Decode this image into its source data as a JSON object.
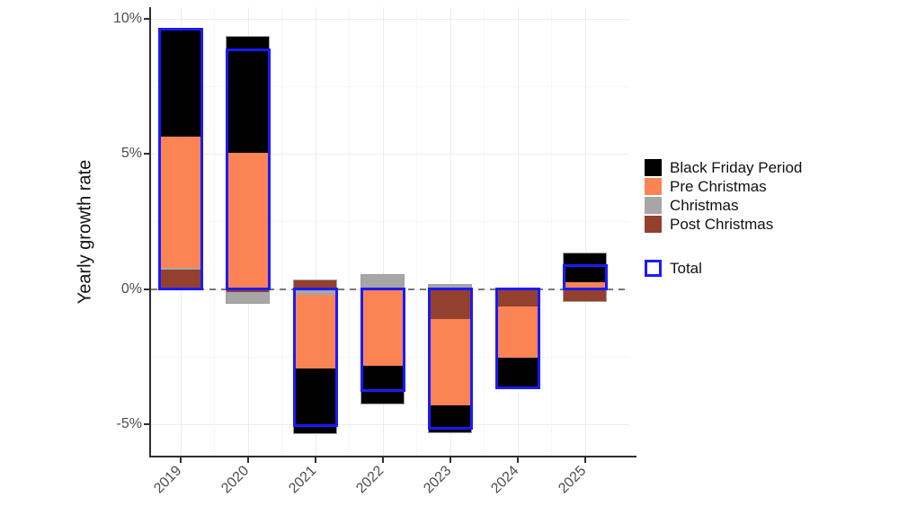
{
  "chart_data": {
    "type": "bar",
    "subtype": "diverging-stacked-bar-with-total-outline",
    "title": "",
    "xlabel": "",
    "ylabel": "Yearly growth rate",
    "categories": [
      "2019",
      "2020",
      "2021",
      "2022",
      "2023",
      "2024",
      "2025"
    ],
    "series": [
      {
        "name": "Black Friday Period",
        "color": "#000000",
        "values": [
          4.0,
          4.3,
          -2.4,
          -1.4,
          -1.0,
          -1.1,
          1.05
        ]
      },
      {
        "name": "Pre Christmas",
        "color": "#FC8454",
        "values": [
          4.85,
          5.05,
          -2.75,
          -2.85,
          -3.2,
          -1.9,
          0.25
        ]
      },
      {
        "name": "Christmas",
        "color": "#A6A6A6",
        "values": [
          0.08,
          -0.4,
          -0.2,
          0.45,
          0.15,
          0.0,
          0.0
        ]
      },
      {
        "name": "Post Christmas",
        "color": "#94402E",
        "values": [
          0.7,
          -0.1,
          0.3,
          0.05,
          -1.1,
          -0.65,
          -0.45
        ]
      }
    ],
    "stack_order_bottom_up": [
      "Post Christmas",
      "Christmas",
      "Pre Christmas",
      "Black Friday Period"
    ],
    "totals": [
      9.63,
      8.85,
      -5.05,
      -3.75,
      -5.15,
      -3.65,
      0.85
    ],
    "total_label": "Total",
    "total_color": "#1A1AFF",
    "bar_border_color": "#A0A0A0",
    "yticks": [
      {
        "value": 10,
        "label": "10%"
      },
      {
        "value": 5,
        "label": "5%"
      },
      {
        "value": 0,
        "label": "0%"
      },
      {
        "value": -5,
        "label": "-5%"
      }
    ],
    "ylim": [
      -6.3,
      10.4
    ],
    "grid": true,
    "zero_line_style": "dashed",
    "zero_line_color": "#7a7a7a",
    "legend_position": "right"
  }
}
